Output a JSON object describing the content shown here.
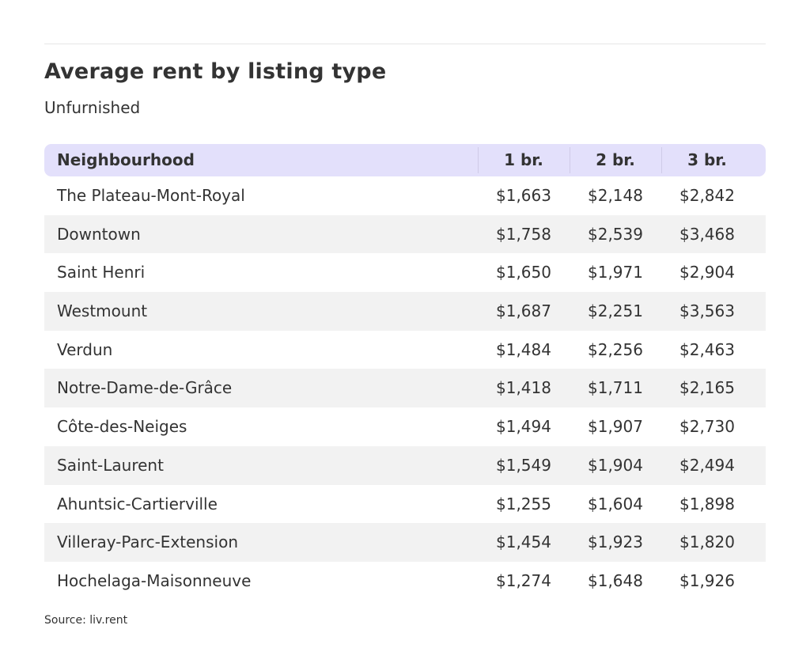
{
  "title": "Average rent by listing type",
  "subtitle": "Unfurnished",
  "source": "Source: liv.rent",
  "colors": {
    "header_background": "#e3e0fb",
    "alternate_row_background": "#f2f2f2",
    "text": "#333333"
  },
  "chart_data": {
    "type": "table",
    "title": "Average rent by listing type",
    "subtitle": "Unfurnished",
    "columns": [
      "Neighbourhood",
      "1 br.",
      "2 br.",
      "3 br."
    ],
    "rows": [
      [
        "The Plateau-Mont-Royal",
        "$1,663",
        "$2,148",
        "$2,842"
      ],
      [
        "Downtown",
        "$1,758",
        "$2,539",
        "$3,468"
      ],
      [
        "Saint Henri",
        "$1,650",
        "$1,971",
        "$2,904"
      ],
      [
        "Westmount",
        "$1,687",
        "$2,251",
        "$3,563"
      ],
      [
        "Verdun",
        "$1,484",
        "$2,256",
        "$2,463"
      ],
      [
        "Notre-Dame-de-Grâce",
        "$1,418",
        "$1,711",
        "$2,165"
      ],
      [
        "Côte-des-Neiges",
        "$1,494",
        "$1,907",
        "$2,730"
      ],
      [
        "Saint-Laurent",
        "$1,549",
        "$1,904",
        "$2,494"
      ],
      [
        "Ahuntsic-Cartierville",
        "$1,255",
        "$1,604",
        "$1,898"
      ],
      [
        "Villeray-Parc-Extension",
        "$1,454",
        "$1,923",
        "$1,820"
      ],
      [
        "Hochelaga-Maisonneuve",
        "$1,274",
        "$1,648",
        "$1,926"
      ]
    ]
  }
}
